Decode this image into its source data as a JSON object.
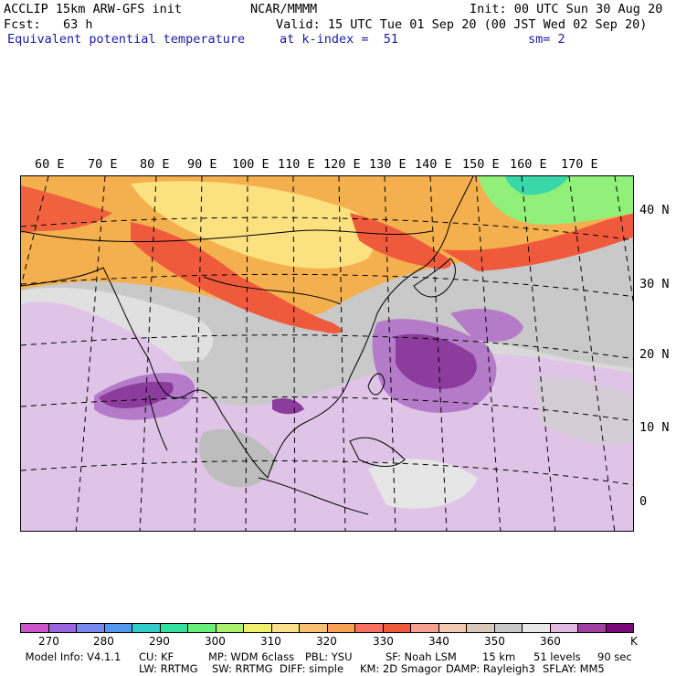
{
  "header": {
    "line1_left": "ACCLIP 15km ARW-GFS init",
    "line1_center": "NCAR/MMMM",
    "line1_right": "Init: 00 UTC Sun 30 Aug 20",
    "line2_left": "Fcst:   63 h",
    "line2_right": "Valid: 15 UTC Tue 01 Sep 20 (00 JST Wed 02 Sep 20)",
    "line3_left": "Equivalent potential temperature",
    "line3_center": "at k-index =  51",
    "line3_right": "sm= 2"
  },
  "map": {
    "longitude_labels": [
      "60 E",
      "70 E",
      "80 E",
      "90 E",
      "100 E",
      "110 E",
      "120 E",
      "130 E",
      "140 E",
      "150 E",
      "160 E",
      "170 E"
    ],
    "latitude_labels": [
      "40 N",
      "30 N",
      "20 N",
      "10 N",
      "0"
    ],
    "field": "Equivalent potential temperature",
    "colors": {
      "hot": "#f05a3c",
      "warm": "#f4b04e",
      "yellow": "#fcea8a",
      "green": "#90f07a",
      "gray": "#bdbdbd",
      "lightgray": "#e6e6e6",
      "lilac": "#e0c4e8",
      "purple": "#b47cc8",
      "darkpurple": "#8c3c9c"
    }
  },
  "colorbar": {
    "colors": [
      "#cc55cc",
      "#9966e0",
      "#7788ee",
      "#5599ee",
      "#33cccc",
      "#33e0a0",
      "#66f07a",
      "#aaf06e",
      "#eef06e",
      "#fae08a",
      "#f8c070",
      "#f8a050",
      "#f87060",
      "#f05a3c",
      "#f6a090",
      "#f2c8b0",
      "#d8c8b8",
      "#c8c8c8",
      "#e8e8e8",
      "#e0b8e0",
      "#a040a0",
      "#7a0a7a"
    ],
    "labels": [
      "270",
      "280",
      "290",
      "300",
      "310",
      "320",
      "330",
      "340",
      "350",
      "360"
    ],
    "unit": "K"
  },
  "footer": {
    "line1": [
      " Model Info: V4.1.1",
      "CU: KF",
      "MP: WDM 6class",
      "PBL: YSU",
      "SF: Noah LSM",
      "15 km",
      "51 levels",
      "90 sec"
    ],
    "line2": [
      "LW: RRTMG",
      "SW: RRTMG",
      "DIFF: simple",
      "KM: 2D Smagor",
      "DAMP: Rayleigh3",
      "SFLAY: MM5"
    ]
  }
}
